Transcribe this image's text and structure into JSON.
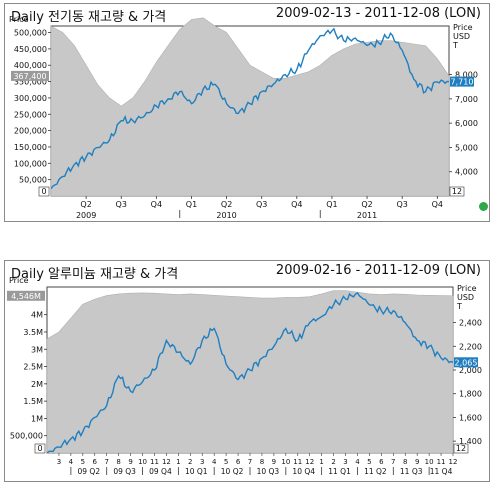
{
  "charts": [
    {
      "title": "Daily 전기동 재고량 & 가격",
      "date_range": "2009-02-13 - 2011-12-08 (LON)",
      "left_axis_title": "Price",
      "right_axis_title": [
        "Price",
        "USD",
        "T"
      ],
      "left_ticks": [
        "500,000",
        "450,000",
        "400,000",
        "350,000",
        "300,000",
        "250,000",
        "200,000",
        "150,000",
        "100,000",
        "50,000"
      ],
      "right_ticks": [
        "8,000",
        "7,000",
        "6,000",
        "5,000",
        "4,000"
      ],
      "last_left_label": "367,400",
      "last_right_label": "7,710",
      "bottom_left_marker": "0",
      "bottom_right_marker": "12",
      "x_ticks": [
        "Q2",
        "Q3",
        "Q4",
        "Q1",
        "Q2",
        "Q3",
        "Q4",
        "Q1",
        "Q2",
        "Q3",
        "Q4"
      ],
      "year_labels": [
        "2009",
        "2010",
        "2011"
      ]
    },
    {
      "title": "Daily 알루미늄 재고량 & 가격",
      "date_range": "2009-02-16 - 2011-12-09 (LON)",
      "left_axis_title": "Price",
      "right_axis_title": [
        "Price",
        "USD",
        "T"
      ],
      "left_ticks": [
        "4M",
        "3.5M",
        "3M",
        "2.5M",
        "2M",
        "1.5M",
        "1M",
        "500,000"
      ],
      "right_ticks": [
        "2,400",
        "2,200",
        "2,000",
        "1,800",
        "1,600",
        "1,400"
      ],
      "last_left_label": "4,546M",
      "last_right_label": "2,065",
      "bottom_left_marker": "0",
      "bottom_right_marker": "12",
      "month_labels": [
        "3",
        "4",
        "5",
        "6",
        "7",
        "8",
        "9",
        "10",
        "11",
        "12",
        "1",
        "2",
        "3",
        "4",
        "5",
        "6",
        "7",
        "8",
        "9",
        "10",
        "11",
        "12",
        "1",
        "2",
        "3",
        "4",
        "5",
        "6",
        "7",
        "8",
        "9",
        "10",
        "11",
        "12"
      ],
      "quarter_labels": [
        "09 Q2",
        "09 Q3",
        "09 Q4",
        "10 Q1",
        "10 Q2",
        "10 Q3",
        "10 Q4",
        "11 Q1",
        "11 Q2",
        "11 Q3",
        "11 Q4"
      ]
    }
  ],
  "chart_data": [
    {
      "type": "area",
      "title": "Daily 전기동 재고량 & 가격",
      "x_range": [
        "2009-02-13",
        "2011-12-08"
      ],
      "series": [
        {
          "name": "재고량",
          "axis": "left",
          "color": "#c8c8c8",
          "x": [
            "2009-02",
            "2009-03",
            "2009-04",
            "2009-05",
            "2009-06",
            "2009-07",
            "2009-08",
            "2009-09",
            "2009-10",
            "2009-11",
            "2009-12",
            "2010-01",
            "2010-02",
            "2010-03",
            "2010-04",
            "2010-05",
            "2010-06",
            "2010-07",
            "2010-08",
            "2010-09",
            "2010-10",
            "2010-11",
            "2010-12",
            "2011-01",
            "2011-02",
            "2011-03",
            "2011-04",
            "2011-05",
            "2011-06",
            "2011-07",
            "2011-08",
            "2011-09",
            "2011-10",
            "2011-11",
            "2011-12"
          ],
          "values": [
            520000,
            500000,
            460000,
            400000,
            340000,
            300000,
            275000,
            300000,
            350000,
            410000,
            460000,
            510000,
            540000,
            545000,
            520000,
            500000,
            450000,
            400000,
            380000,
            360000,
            360000,
            370000,
            380000,
            400000,
            430000,
            450000,
            465000,
            470000,
            475000,
            475000,
            470000,
            465000,
            460000,
            420000,
            367400
          ]
        },
        {
          "name": "가격",
          "axis": "right",
          "color": "#1f7fc0",
          "x": [
            "2009-02",
            "2009-03",
            "2009-04",
            "2009-05",
            "2009-06",
            "2009-07",
            "2009-08",
            "2009-09",
            "2009-10",
            "2009-11",
            "2009-12",
            "2010-01",
            "2010-02",
            "2010-03",
            "2010-04",
            "2010-05",
            "2010-06",
            "2010-07",
            "2010-08",
            "2010-09",
            "2010-10",
            "2010-11",
            "2010-12",
            "2011-01",
            "2011-02",
            "2011-03",
            "2011-04",
            "2011-05",
            "2011-06",
            "2011-07",
            "2011-08",
            "2011-09",
            "2011-10",
            "2011-11",
            "2011-12"
          ],
          "values": [
            3300,
            3800,
            4300,
            4600,
            5000,
            5300,
            6100,
            6100,
            6300,
            6700,
            7000,
            7300,
            6800,
            7400,
            7600,
            6800,
            6400,
            6800,
            7300,
            7600,
            8000,
            8200,
            9000,
            9600,
            9800,
            9400,
            9500,
            9200,
            9300,
            9700,
            9000,
            7800,
            7300,
            7700,
            7710
          ]
        }
      ],
      "left_ylim": [
        0,
        520000
      ],
      "right_ylim": [
        3000,
        10000
      ]
    },
    {
      "type": "area",
      "title": "Daily 알루미늄 재고량 & 가격",
      "x_range": [
        "2009-02-16",
        "2011-12-09"
      ],
      "series": [
        {
          "name": "재고량",
          "axis": "left",
          "color": "#c8c8c8",
          "x": [
            "2009-02",
            "2009-03",
            "2009-04",
            "2009-05",
            "2009-06",
            "2009-07",
            "2009-08",
            "2009-09",
            "2009-10",
            "2009-11",
            "2009-12",
            "2010-01",
            "2010-02",
            "2010-03",
            "2010-04",
            "2010-05",
            "2010-06",
            "2010-07",
            "2010-08",
            "2010-09",
            "2010-10",
            "2010-11",
            "2010-12",
            "2011-01",
            "2011-02",
            "2011-03",
            "2011-04",
            "2011-05",
            "2011-06",
            "2011-07",
            "2011-08",
            "2011-09",
            "2011-10",
            "2011-11",
            "2011-12"
          ],
          "values": [
            3300000,
            3500000,
            3900000,
            4300000,
            4450000,
            4550000,
            4600000,
            4620000,
            4630000,
            4620000,
            4600000,
            4580000,
            4600000,
            4580000,
            4560000,
            4540000,
            4520000,
            4500000,
            4480000,
            4480000,
            4500000,
            4500000,
            4520000,
            4600000,
            4700000,
            4700000,
            4650000,
            4600000,
            4580000,
            4600000,
            4590000,
            4570000,
            4560000,
            4550000,
            4546000
          ]
        },
        {
          "name": "가격",
          "axis": "right",
          "color": "#1f7fc0",
          "x": [
            "2009-02",
            "2009-03",
            "2009-04",
            "2009-05",
            "2009-06",
            "2009-07",
            "2009-08",
            "2009-09",
            "2009-10",
            "2009-11",
            "2009-12",
            "2010-01",
            "2010-02",
            "2010-03",
            "2010-04",
            "2010-05",
            "2010-06",
            "2010-07",
            "2010-08",
            "2010-09",
            "2010-10",
            "2010-11",
            "2010-12",
            "2011-01",
            "2011-02",
            "2011-03",
            "2011-04",
            "2011-05",
            "2011-06",
            "2011-07",
            "2011-08",
            "2011-09",
            "2011-10",
            "2011-11",
            "2011-12"
          ],
          "values": [
            1300,
            1350,
            1420,
            1480,
            1600,
            1700,
            1950,
            1820,
            1900,
            2000,
            2250,
            2150,
            2050,
            2250,
            2350,
            2050,
            1920,
            2000,
            2100,
            2200,
            2350,
            2250,
            2400,
            2450,
            2550,
            2600,
            2650,
            2550,
            2500,
            2500,
            2400,
            2250,
            2200,
            2100,
            2065
          ]
        }
      ],
      "left_ylim": [
        0,
        4800000
      ],
      "right_ylim": [
        1300,
        2700
      ]
    }
  ]
}
